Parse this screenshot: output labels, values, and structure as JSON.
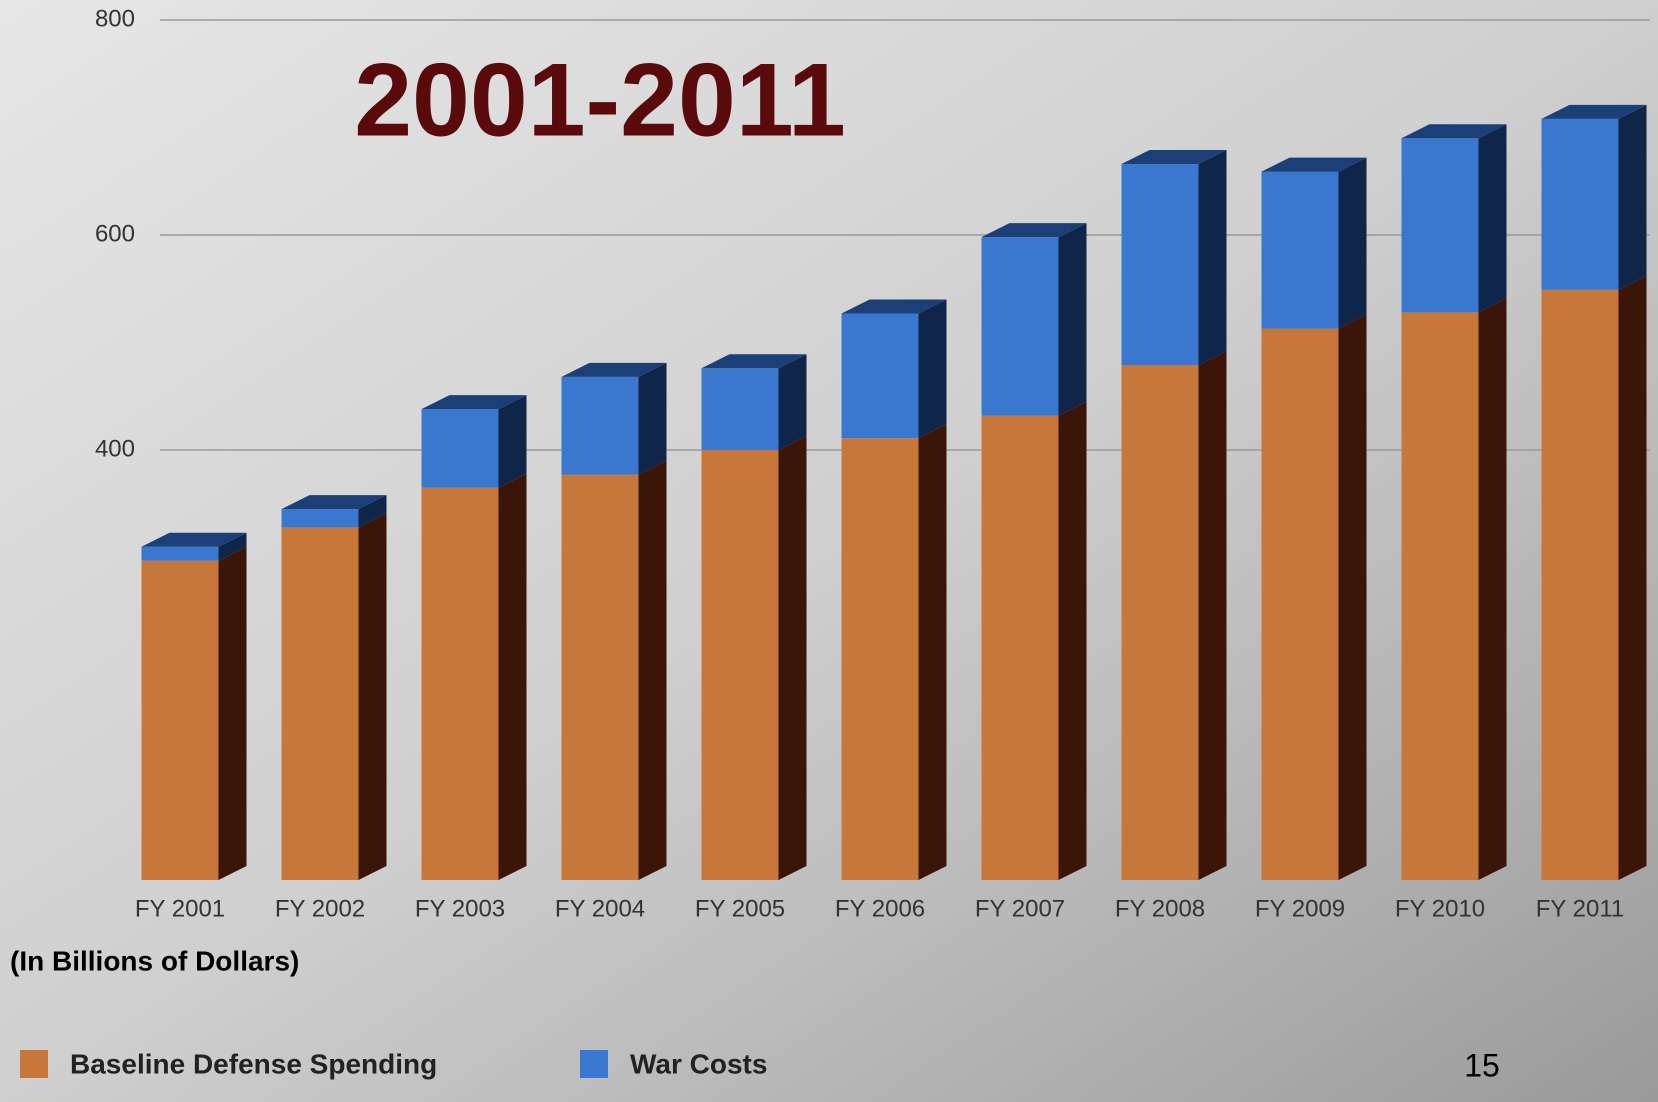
{
  "chart_data": {
    "type": "bar",
    "stacked": true,
    "title": "2001-2011",
    "axis_label": "(In Billions of Dollars)",
    "categories": [
      "FY 2001",
      "FY 2002",
      "FY 2003",
      "FY 2004",
      "FY 2005",
      "FY 2006",
      "FY 2007",
      "FY 2008",
      "FY 2009",
      "FY 2010",
      "FY 2011"
    ],
    "series": [
      {
        "name": "Baseline Defense Spending",
        "color": "#c8773a",
        "values": [
          297,
          328,
          365,
          377,
          400,
          411,
          432,
          479,
          513,
          528,
          549
        ]
      },
      {
        "name": "War Costs",
        "color": "#3a78d0",
        "values": [
          13,
          17,
          73,
          91,
          76,
          116,
          166,
          187,
          146,
          162,
          159
        ]
      }
    ],
    "ylim": [
      0,
      800
    ],
    "yticks": [
      400,
      600,
      800
    ],
    "grid": true,
    "legend": "bottom-left",
    "page_number": "15"
  }
}
